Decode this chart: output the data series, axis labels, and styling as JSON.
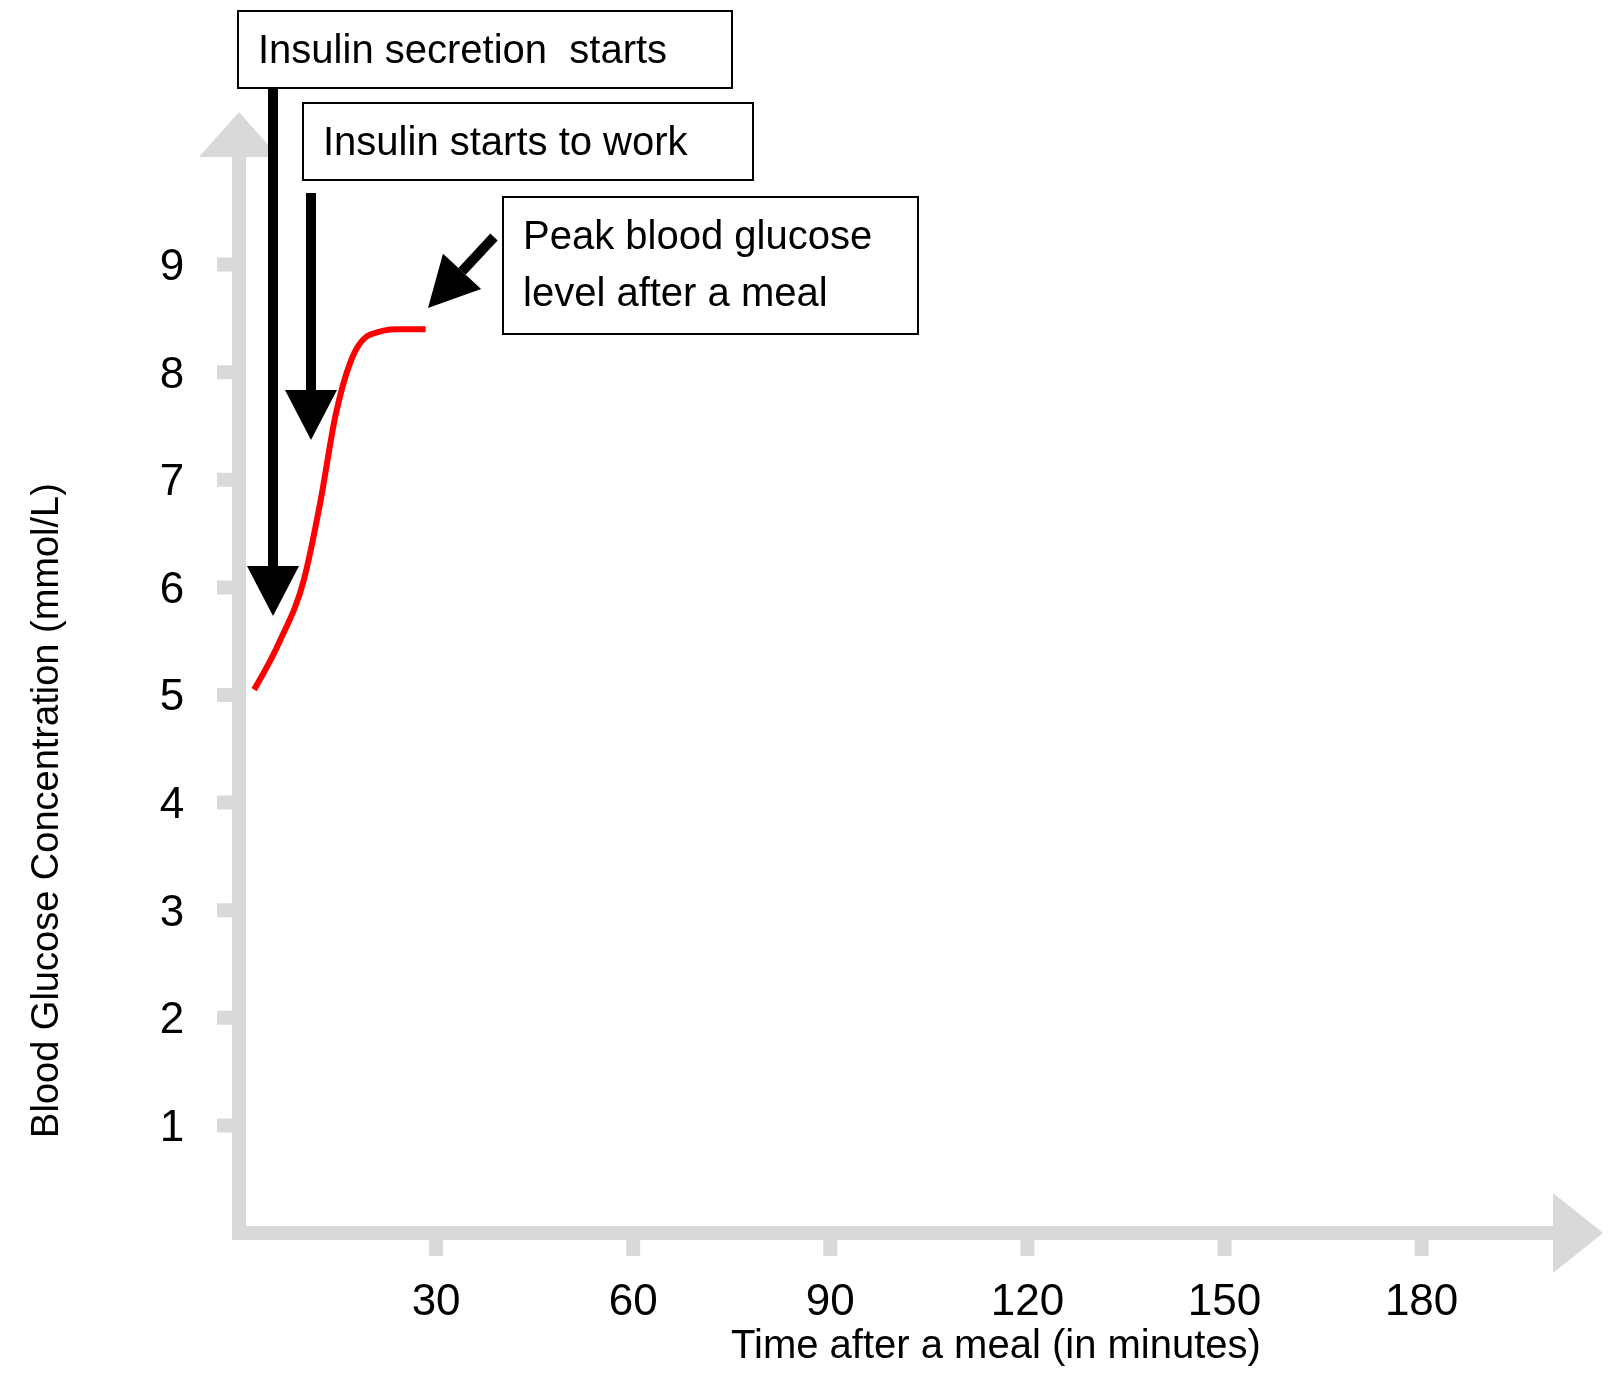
{
  "chart_data": {
    "type": "line",
    "xlabel": "Time after a meal (in minutes)",
    "ylabel": "Blood Glucose Concentration (mmol/L)",
    "x": [
      2.3,
      6.2,
      10,
      12.4,
      14.7,
      17,
      20,
      24,
      28.4
    ],
    "series": [
      {
        "color": "#ff0000",
        "values": [
          5.05,
          5.5,
          6.1,
          6.8,
          7.6,
          8.1,
          8.35,
          8.4,
          8.4
        ]
      }
    ],
    "xlim": [
      0,
      200
    ],
    "xticks": [
      30,
      60,
      90,
      120,
      150,
      180
    ],
    "ylim": [
      0,
      10
    ],
    "yticks": [
      1,
      2,
      3,
      4,
      5,
      6,
      7,
      8,
      9
    ],
    "grid": false,
    "marker": "none",
    "line_style": "solid",
    "annotations": [
      "Insulin secretion  starts",
      "Insulin starts to work",
      "Peak blood glucose level after a meal"
    ]
  }
}
